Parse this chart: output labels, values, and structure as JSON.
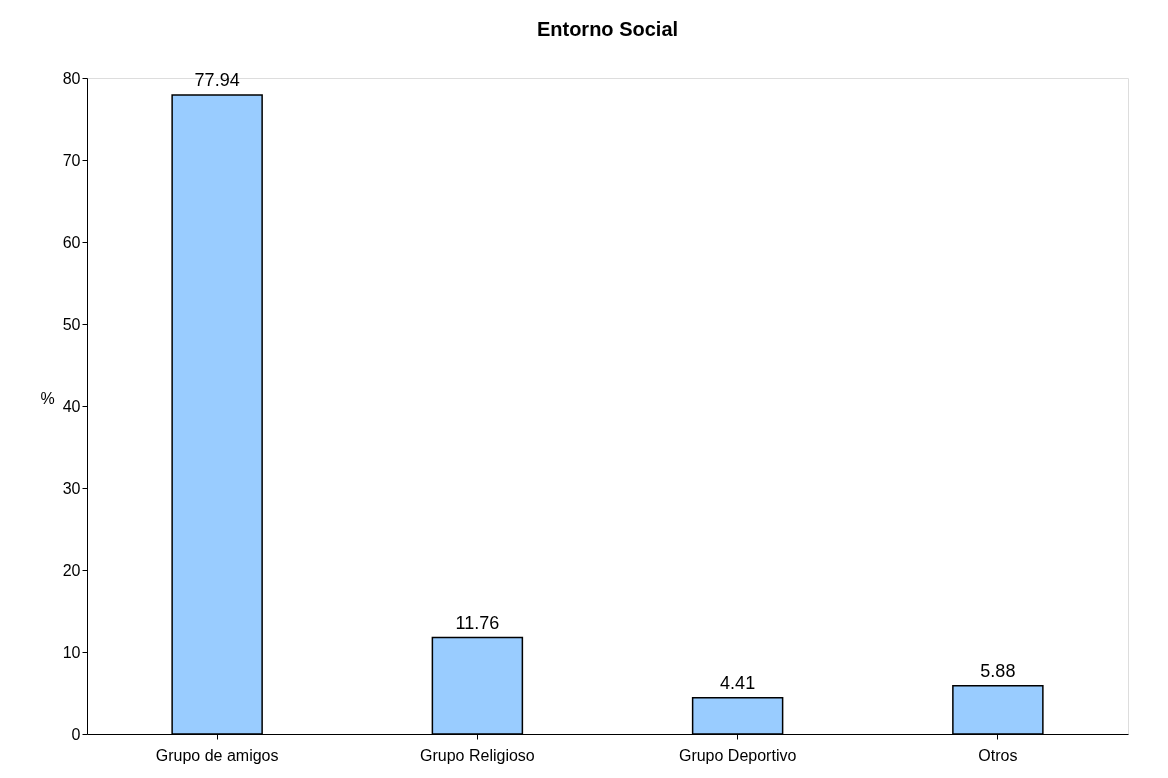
{
  "chart_data": {
    "type": "bar",
    "title": "Entorno Social",
    "ylabel": "%",
    "categories": [
      "Grupo de amigos",
      "Grupo Religioso",
      "Grupo Deportivo",
      "Otros"
    ],
    "values": [
      77.94,
      11.76,
      4.41,
      5.88
    ],
    "color": "#99ccff",
    "ylim": [
      0,
      80
    ],
    "yticks": [
      0,
      10,
      20,
      30,
      40,
      50,
      60,
      70,
      80
    ],
    "grid": false,
    "data_labels": true
  }
}
